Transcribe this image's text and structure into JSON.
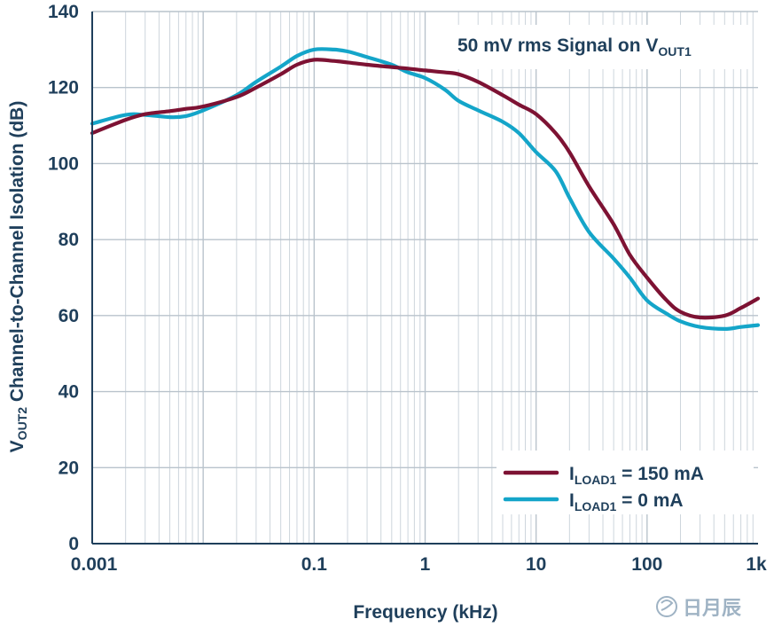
{
  "chart_data": {
    "type": "line",
    "title": "",
    "xlabel": "Frequency (kHz)",
    "ylabel": {
      "prefix": "V",
      "sub": "OUT2",
      "rest": " Channel-to-Channel Isolation (dB)"
    },
    "x_scale": "log",
    "xlim": [
      0.001,
      1000
    ],
    "ylim": [
      0,
      140
    ],
    "x_ticks": [
      0.001,
      0.1,
      1,
      10,
      100,
      1000
    ],
    "x_tick_labels": [
      "0.001",
      "0.1",
      "1",
      "10",
      "100",
      "1k"
    ],
    "y_ticks": [
      0,
      20,
      40,
      60,
      80,
      100,
      120,
      140
    ],
    "y_tick_labels": [
      "0",
      "20",
      "40",
      "60",
      "80",
      "100",
      "120",
      "140"
    ],
    "grid": true,
    "legend_position": "bottom-right",
    "annotation": {
      "prefix": "50 mV rms Signal on V",
      "sub": "OUT1"
    },
    "series": [
      {
        "label_prefix": "I",
        "label_sub": "LOAD1",
        "label_rest": " = 150 mA",
        "color": "#7d1233",
        "x": [
          0.001,
          0.002,
          0.003,
          0.005,
          0.007,
          0.01,
          0.02,
          0.03,
          0.05,
          0.07,
          0.1,
          0.15,
          0.2,
          0.3,
          0.5,
          0.7,
          1,
          1.5,
          2,
          3,
          5,
          7,
          10,
          15,
          20,
          30,
          50,
          70,
          100,
          150,
          200,
          300,
          500,
          700,
          1000
        ],
        "y": [
          108,
          111.5,
          113,
          113.8,
          114.4,
          115,
          117.5,
          120,
          123.5,
          126,
          127.3,
          127,
          126.6,
          126,
          125.4,
          125,
          124.5,
          124,
          123.5,
          121.5,
          118,
          115.5,
          113,
          108,
          103,
          94,
          84,
          76,
          70,
          64,
          61,
          59.5,
          60,
          62,
          64.5
        ]
      },
      {
        "label_prefix": "I",
        "label_sub": "LOAD1",
        "label_rest": " = 0 mA",
        "color": "#14a5c9",
        "x": [
          0.001,
          0.002,
          0.003,
          0.005,
          0.007,
          0.01,
          0.02,
          0.03,
          0.05,
          0.07,
          0.1,
          0.15,
          0.2,
          0.3,
          0.5,
          0.7,
          1,
          1.5,
          2,
          3,
          5,
          7,
          10,
          15,
          20,
          30,
          50,
          70,
          100,
          150,
          200,
          300,
          500,
          700,
          1000
        ],
        "y": [
          110.5,
          112.8,
          112.8,
          112.2,
          112.5,
          114,
          118,
          121.5,
          125.5,
          128.3,
          130,
          130,
          129.5,
          128,
          126,
          124,
          122.5,
          119.5,
          116.5,
          114,
          111,
          108,
          103,
          98,
          91,
          82,
          75,
          70,
          64,
          60.5,
          58.5,
          57,
          56.5,
          57,
          57.5
        ]
      }
    ]
  },
  "watermark": "日月辰"
}
